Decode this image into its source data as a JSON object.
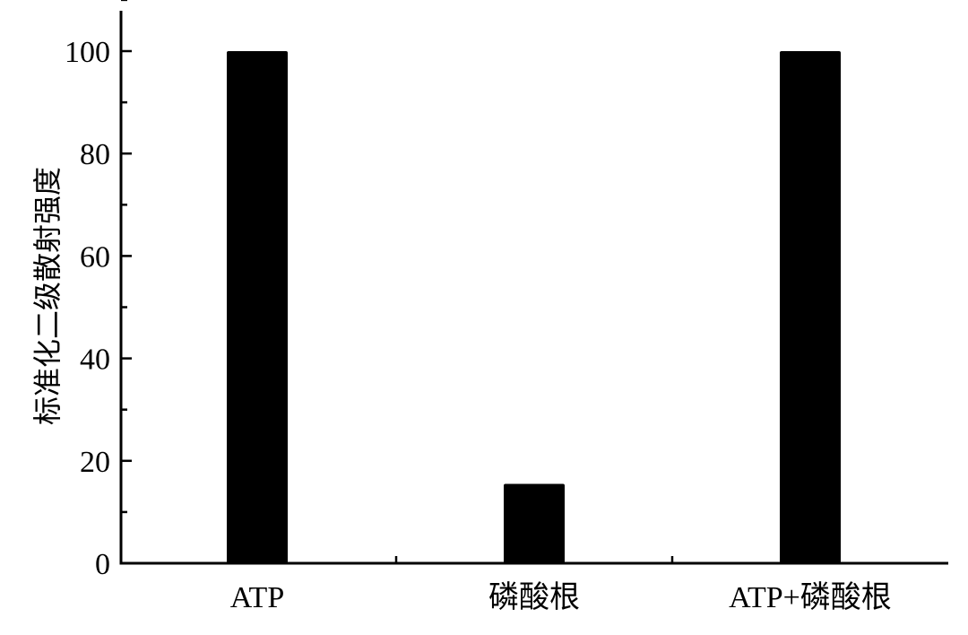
{
  "chart_data": {
    "type": "bar",
    "categories": [
      "ATP",
      "磷酸根",
      "ATP+磷酸根"
    ],
    "values": [
      100,
      15.5,
      100
    ],
    "title": "",
    "xlabel": "",
    "ylabel": "标准化二级散射强度",
    "ylim": [
      0,
      110
    ],
    "yticks": [
      0,
      20,
      40,
      60,
      80,
      100
    ],
    "ytick_labels": [
      "0",
      "20",
      "40",
      "60",
      "80",
      "100"
    ],
    "minor_ytick_step": 10,
    "bar_color": "#000000",
    "grid": false,
    "legend": "none"
  }
}
